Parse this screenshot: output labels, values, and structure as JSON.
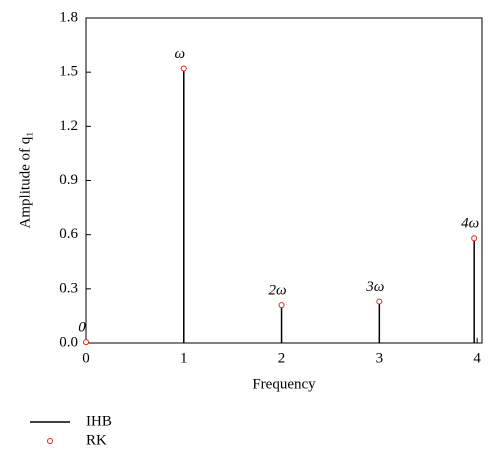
{
  "chart_data": {
    "type": "stem",
    "xlabel": "Frequency",
    "ylabel": "Amplitude of q₁",
    "x": [
      0,
      1,
      2,
      3,
      3.97
    ],
    "point_labels": [
      "0",
      "ω",
      "2ω",
      "3ω",
      "4ω"
    ],
    "series": [
      {
        "name": "IHB",
        "color": "#000000",
        "kind": "stem",
        "values": [
          0.005,
          1.52,
          0.21,
          0.23,
          0.58
        ]
      },
      {
        "name": "RK",
        "color": "#e2231a",
        "kind": "marker",
        "values": [
          0.005,
          1.52,
          0.21,
          0.23,
          0.58
        ]
      }
    ],
    "xlim": [
      0,
      4.05
    ],
    "ylim": [
      0,
      1.8
    ],
    "xticks": [
      0,
      1,
      2,
      3,
      4
    ],
    "yticks": [
      {
        "value": 0,
        "label": "0.0"
      },
      0.3,
      0.6,
      0.9,
      1.2,
      1.5,
      1.8
    ],
    "legend": "below-left"
  }
}
